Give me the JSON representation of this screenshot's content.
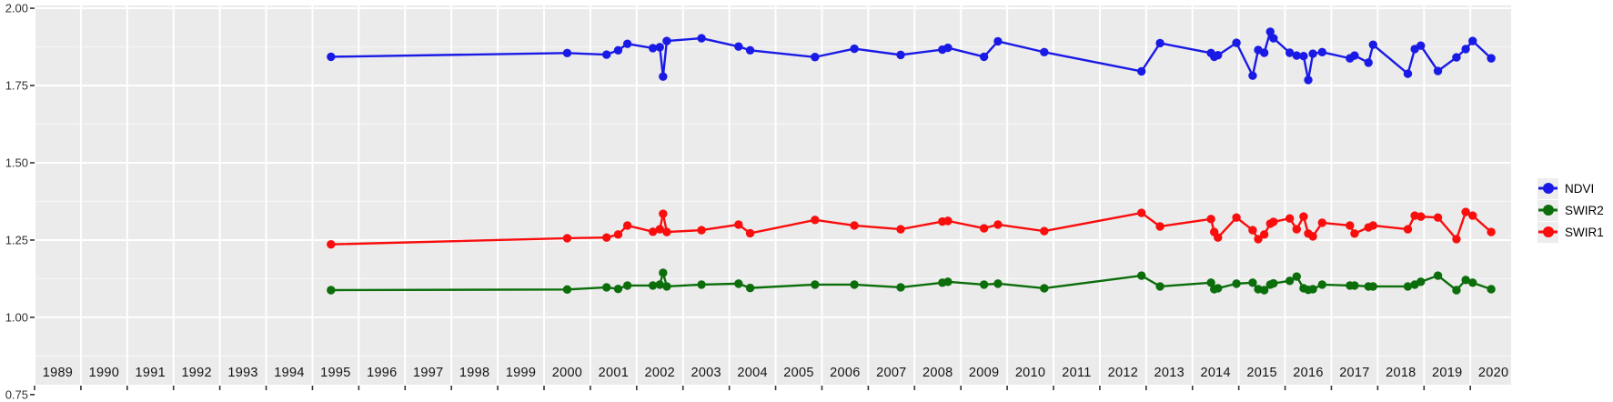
{
  "chart_data": {
    "type": "line",
    "title": "",
    "xlabel": "",
    "ylabel": "",
    "grid": "on",
    "panel_background": "#ebebeb",
    "gridline_color": "#ffffff",
    "x_axis": {
      "range": [
        1989.0,
        2020.88
      ],
      "tick_years": [
        1989,
        1990,
        1991,
        1992,
        1993,
        1994,
        1995,
        1996,
        1997,
        1998,
        1999,
        2000,
        2001,
        2002,
        2003,
        2004,
        2005,
        2006,
        2007,
        2008,
        2009,
        2010,
        2011,
        2012,
        2013,
        2014,
        2015,
        2016,
        2017,
        2018,
        2019,
        2020
      ]
    },
    "y_axis": {
      "range": [
        0.782,
        2.009
      ],
      "tick_labels": [
        "2.00",
        "1.75",
        "1.50",
        "1.25",
        "1.00",
        "0.75"
      ],
      "tick_values": [
        2.0,
        1.75,
        1.5,
        1.25,
        1.0,
        0.75
      ]
    },
    "x": [
      1995.4,
      2000.5,
      2001.35,
      2001.6,
      2001.8,
      2002.35,
      2002.5,
      2002.57,
      2002.65,
      2003.4,
      2004.2,
      2004.45,
      2005.85,
      2006.7,
      2007.7,
      2008.6,
      2008.72,
      2009.5,
      2009.8,
      2010.8,
      2012.9,
      2013.3,
      2014.4,
      2014.47,
      2014.55,
      2014.95,
      2015.3,
      2015.42,
      2015.55,
      2015.68,
      2015.75,
      2016.1,
      2016.25,
      2016.4,
      2016.5,
      2016.6,
      2016.8,
      2017.4,
      2017.5,
      2017.8,
      2017.9,
      2018.65,
      2018.8,
      2018.93,
      2019.3,
      2019.7,
      2019.9,
      2020.05,
      2020.45
    ],
    "series": [
      {
        "name": "NDVI",
        "color": "#1a1ae6",
        "values": [
          1.843,
          1.855,
          1.85,
          1.864,
          1.885,
          1.871,
          1.874,
          1.779,
          1.894,
          1.903,
          1.876,
          1.864,
          1.842,
          1.869,
          1.849,
          1.866,
          1.872,
          1.843,
          1.893,
          1.858,
          1.796,
          1.887,
          1.855,
          1.843,
          1.848,
          1.888,
          1.782,
          1.865,
          1.856,
          1.924,
          1.903,
          1.856,
          1.847,
          1.845,
          1.768,
          1.853,
          1.858,
          1.838,
          1.847,
          1.824,
          1.882,
          1.788,
          1.868,
          1.879,
          1.797,
          1.841,
          1.868,
          1.894,
          1.838
        ]
      },
      {
        "name": "SWIR2",
        "color": "#0b6e0b",
        "values": [
          1.088,
          1.09,
          1.097,
          1.092,
          1.103,
          1.103,
          1.106,
          1.144,
          1.1,
          1.106,
          1.109,
          1.095,
          1.106,
          1.106,
          1.097,
          1.112,
          1.115,
          1.106,
          1.109,
          1.094,
          1.135,
          1.1,
          1.112,
          1.091,
          1.094,
          1.109,
          1.112,
          1.091,
          1.088,
          1.106,
          1.11,
          1.118,
          1.132,
          1.094,
          1.089,
          1.091,
          1.106,
          1.103,
          1.103,
          1.1,
          1.1,
          1.1,
          1.106,
          1.115,
          1.135,
          1.088,
          1.121,
          1.112,
          1.091
        ]
      },
      {
        "name": "SWIR1",
        "color": "#f90d0d",
        "values": [
          1.236,
          1.256,
          1.258,
          1.268,
          1.297,
          1.277,
          1.285,
          1.335,
          1.276,
          1.282,
          1.3,
          1.272,
          1.315,
          1.297,
          1.285,
          1.31,
          1.312,
          1.288,
          1.3,
          1.279,
          1.338,
          1.294,
          1.318,
          1.276,
          1.258,
          1.323,
          1.282,
          1.253,
          1.268,
          1.303,
          1.309,
          1.32,
          1.285,
          1.326,
          1.271,
          1.262,
          1.306,
          1.297,
          1.271,
          1.291,
          1.297,
          1.285,
          1.329,
          1.326,
          1.323,
          1.253,
          1.341,
          1.329,
          1.276
        ]
      }
    ],
    "legend": {
      "position": "right",
      "items": [
        "NDVI",
        "SWIR2",
        "SWIR1"
      ]
    }
  },
  "colors": {
    "axis_text_y": "#303030",
    "axis_text_x": "#141414",
    "tick_mark": "#333333"
  }
}
